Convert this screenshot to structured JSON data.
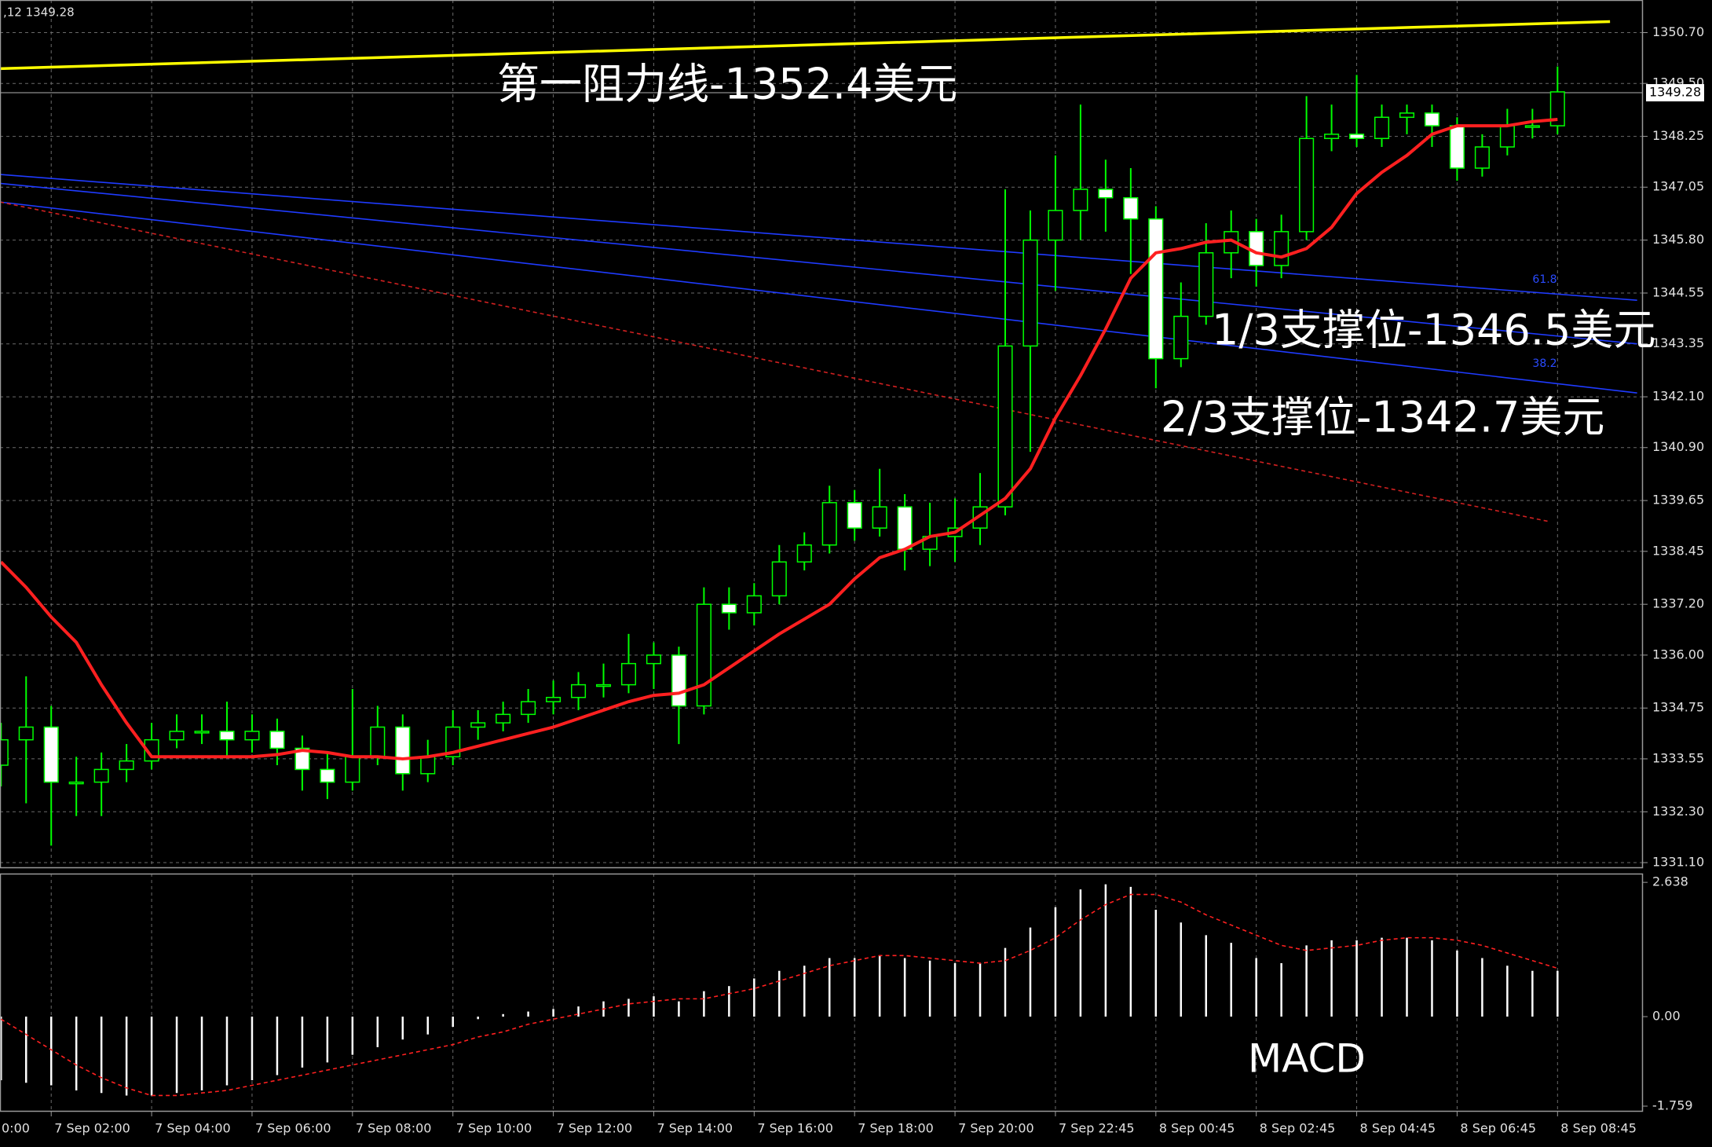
{
  "chart_data": [
    {
      "type": "candlestick",
      "info": ",12 1349.28",
      "x": [
        2,
        3,
        4,
        5,
        6,
        7,
        8,
        9,
        10,
        11,
        12,
        13,
        14,
        15,
        16,
        17,
        18,
        19,
        20,
        21,
        22,
        23,
        24,
        25,
        26,
        27,
        28,
        29,
        30,
        31,
        32,
        33,
        34,
        35,
        36,
        37,
        38,
        39,
        40,
        41,
        42,
        43,
        44,
        45,
        46,
        47,
        48,
        49,
        50,
        51,
        52,
        53,
        54,
        55,
        56,
        57,
        58,
        59,
        60,
        61,
        62,
        63,
        64
      ],
      "open": [
        1333.4,
        1334.0,
        1334.3,
        1333.0,
        1333.0,
        1333.3,
        1333.5,
        1334.0,
        1334.2,
        1334.2,
        1334.0,
        1334.2,
        1333.8,
        1333.3,
        1333.0,
        1333.6,
        1334.3,
        1333.2,
        1333.6,
        1334.3,
        1334.4,
        1334.6,
        1334.9,
        1335.0,
        1335.3,
        1335.3,
        1335.8,
        1336.0,
        1334.8,
        1337.2,
        1337.0,
        1337.4,
        1338.2,
        1338.6,
        1339.6,
        1339.0,
        1339.5,
        1338.5,
        1338.8,
        1339.0,
        1339.5,
        1343.3,
        1345.8,
        1346.5,
        1347.0,
        1346.8,
        1346.3,
        1343.0,
        1344.0,
        1345.5,
        1346.0,
        1345.2,
        1346.0,
        1348.2,
        1348.3,
        1348.2,
        1348.7,
        1348.8,
        1348.5,
        1347.5,
        1348.0,
        1348.5,
        1348.5
      ],
      "high": [
        1334.4,
        1335.5,
        1334.8,
        1333.6,
        1333.7,
        1333.9,
        1334.4,
        1334.6,
        1334.6,
        1334.9,
        1334.6,
        1334.5,
        1334.1,
        1333.7,
        1335.2,
        1334.8,
        1334.6,
        1334.0,
        1334.7,
        1334.7,
        1334.9,
        1335.2,
        1335.4,
        1335.6,
        1335.8,
        1336.5,
        1336.3,
        1336.2,
        1337.6,
        1337.6,
        1337.7,
        1338.6,
        1338.9,
        1340.0,
        1339.9,
        1340.4,
        1339.8,
        1339.6,
        1339.7,
        1340.3,
        1347.0,
        1346.5,
        1347.8,
        1349.0,
        1347.7,
        1347.5,
        1346.6,
        1344.8,
        1346.2,
        1346.5,
        1346.3,
        1346.4,
        1349.2,
        1349.0,
        1349.7,
        1349.0,
        1349.0,
        1349.0,
        1348.7,
        1348.3,
        1348.9,
        1348.9,
        1349.9
      ],
      "low": [
        1332.9,
        1332.5,
        1331.5,
        1332.2,
        1332.2,
        1333.0,
        1333.3,
        1333.8,
        1333.9,
        1333.6,
        1333.7,
        1333.4,
        1332.8,
        1332.6,
        1332.8,
        1333.4,
        1332.8,
        1333.0,
        1333.4,
        1334.0,
        1334.2,
        1334.4,
        1334.6,
        1334.7,
        1335.0,
        1335.1,
        1335.2,
        1333.9,
        1334.6,
        1336.6,
        1336.7,
        1337.2,
        1338.0,
        1338.4,
        1338.7,
        1338.8,
        1338.0,
        1338.1,
        1338.2,
        1338.6,
        1339.3,
        1340.8,
        1344.6,
        1345.8,
        1346.0,
        1345.0,
        1342.3,
        1342.8,
        1343.8,
        1344.9,
        1344.7,
        1344.9,
        1345.8,
        1347.9,
        1348.0,
        1348.0,
        1348.3,
        1348.0,
        1347.2,
        1347.3,
        1347.8,
        1348.2,
        1348.3
      ],
      "close": [
        1334.0,
        1334.3,
        1333.0,
        1333.0,
        1333.3,
        1333.5,
        1334.0,
        1334.2,
        1334.2,
        1334.0,
        1334.2,
        1333.8,
        1333.3,
        1333.0,
        1333.6,
        1334.3,
        1333.2,
        1333.6,
        1334.3,
        1334.4,
        1334.6,
        1334.9,
        1335.0,
        1335.3,
        1335.3,
        1335.8,
        1336.0,
        1334.8,
        1337.2,
        1337.0,
        1337.4,
        1338.2,
        1338.6,
        1339.6,
        1339.0,
        1339.5,
        1338.5,
        1338.8,
        1339.0,
        1339.5,
        1343.3,
        1345.8,
        1346.5,
        1347.0,
        1346.8,
        1346.3,
        1343.0,
        1344.0,
        1345.5,
        1346.0,
        1345.2,
        1346.0,
        1348.2,
        1348.3,
        1348.2,
        1348.7,
        1348.8,
        1348.5,
        1347.5,
        1348.0,
        1348.5,
        1348.5,
        1349.3
      ],
      "candle_color": "#00ff00",
      "ma": {
        "color": "#ff2020",
        "values": [
          1338.2,
          1337.6,
          1336.9,
          1336.3,
          1335.3,
          1334.4,
          1333.6,
          1333.6,
          1333.6,
          1333.6,
          1333.6,
          1333.65,
          1333.75,
          1333.7,
          1333.6,
          1333.6,
          1333.55,
          1333.6,
          1333.7,
          1333.85,
          1334.0,
          1334.15,
          1334.3,
          1334.5,
          1334.7,
          1334.9,
          1335.05,
          1335.1,
          1335.3,
          1335.7,
          1336.1,
          1336.5,
          1336.85,
          1337.2,
          1337.8,
          1338.3,
          1338.5,
          1338.8,
          1338.9,
          1339.3,
          1339.7,
          1340.4,
          1341.6,
          1342.6,
          1343.7,
          1344.9,
          1345.5,
          1345.6,
          1345.75,
          1345.8,
          1345.5,
          1345.4,
          1345.6,
          1346.1,
          1346.9,
          1347.4,
          1347.8,
          1348.3,
          1348.5,
          1348.5,
          1348.5,
          1348.6,
          1348.65
        ]
      },
      "lines": [
        {
          "color": "#ffff00",
          "style": "solid",
          "x": [
            1.96,
            66.09
          ],
          "values": [
            1349.85,
            1350.96
          ]
        },
        {
          "color": "#1f3bff",
          "style": "solid",
          "x": [
            1.96,
            67.17
          ],
          "values": [
            1347.35,
            1344.38
          ]
        },
        {
          "color": "#1f3bff",
          "style": "solid",
          "x": [
            1.96,
            67.17
          ],
          "values": [
            1347.14,
            1343.35
          ]
        },
        {
          "color": "#1f3bff",
          "style": "solid",
          "x": [
            1.96,
            67.17
          ],
          "values": [
            1346.7,
            1342.19
          ]
        },
        {
          "color": "#d02020",
          "style": "dashed",
          "x": [
            1.96,
            63.7
          ],
          "values": [
            1346.7,
            1339.15
          ]
        }
      ],
      "current_price": {
        "value": 1349.28,
        "label": "1349.28"
      },
      "fib_levels": [
        61.8,
        38.2
      ],
      "annotations": [
        "第一阻力线-1352.4美元",
        "1/3支撑位-1346.5美元",
        "2/3支撑位-1342.7美元"
      ],
      "xlim": [
        1.96,
        67.4
      ],
      "ylim": [
        1330.97,
        1351.47
      ],
      "yticks": [
        {
          "value": 1350.7,
          "label": "1350.70"
        },
        {
          "value": 1349.5,
          "label": "1349.50"
        },
        1348.25,
        1347.05,
        {
          "value": 1345.8,
          "label": "1345.80"
        },
        1344.55,
        1343.35,
        {
          "value": 1342.1,
          "label": "1342.10"
        },
        {
          "value": 1340.9,
          "label": "1340.90"
        },
        1339.65,
        1338.45,
        {
          "value": 1337.2,
          "label": "1337.20"
        },
        {
          "value": 1336,
          "label": "1336.00"
        },
        1334.75,
        1333.55,
        {
          "value": 1332.3,
          "label": "1332.30"
        },
        {
          "value": 1331.1,
          "label": "1331.10"
        }
      ],
      "grid": true
    },
    {
      "type": "macd",
      "label": "MACD",
      "x": [
        2,
        3,
        4,
        5,
        6,
        7,
        8,
        9,
        10,
        11,
        12,
        13,
        14,
        15,
        16,
        17,
        18,
        19,
        20,
        21,
        22,
        23,
        24,
        25,
        26,
        27,
        28,
        29,
        30,
        31,
        32,
        33,
        34,
        35,
        36,
        37,
        38,
        39,
        40,
        41,
        42,
        43,
        44,
        45,
        46,
        47,
        48,
        49,
        50,
        51,
        52,
        53,
        54,
        55,
        56,
        57,
        58,
        59,
        60,
        61,
        62,
        63,
        64
      ],
      "histogram": {
        "color": "#ffffff",
        "values": [
          -1.25,
          -1.3,
          -1.35,
          -1.45,
          -1.5,
          -1.55,
          -1.55,
          -1.5,
          -1.45,
          -1.35,
          -1.25,
          -1.15,
          -1.0,
          -0.9,
          -0.75,
          -0.6,
          -0.45,
          -0.35,
          -0.2,
          -0.05,
          0.05,
          0.1,
          0.15,
          0.2,
          0.3,
          0.35,
          0.4,
          0.3,
          0.5,
          0.6,
          0.75,
          0.9,
          1.0,
          1.15,
          1.15,
          1.2,
          1.15,
          1.1,
          1.05,
          1.05,
          1.35,
          1.75,
          2.15,
          2.5,
          2.6,
          2.55,
          2.1,
          1.85,
          1.6,
          1.45,
          1.15,
          1.05,
          1.4,
          1.5,
          1.5,
          1.55,
          1.55,
          1.5,
          1.3,
          1.15,
          1.0,
          0.9,
          0.9
        ]
      },
      "signal": {
        "color": "#ff2020",
        "values": [
          -0.05,
          -0.35,
          -0.65,
          -0.95,
          -1.2,
          -1.4,
          -1.55,
          -1.55,
          -1.5,
          -1.45,
          -1.35,
          -1.25,
          -1.15,
          -1.05,
          -0.95,
          -0.85,
          -0.75,
          -0.65,
          -0.55,
          -0.4,
          -0.3,
          -0.15,
          -0.05,
          0.05,
          0.15,
          0.25,
          0.3,
          0.35,
          0.35,
          0.45,
          0.55,
          0.7,
          0.85,
          1.0,
          1.1,
          1.2,
          1.2,
          1.15,
          1.1,
          1.05,
          1.1,
          1.3,
          1.55,
          1.9,
          2.2,
          2.4,
          2.4,
          2.25,
          2.0,
          1.8,
          1.6,
          1.4,
          1.3,
          1.35,
          1.4,
          1.5,
          1.55,
          1.55,
          1.5,
          1.4,
          1.25,
          1.1,
          0.95
        ]
      },
      "xlim": [
        1.96,
        67.4
      ],
      "ylim": [
        -1.867,
        2.81
      ],
      "yticks": [
        2.638,
        {
          "value": 0,
          "label": "0.00"
        },
        -1.759
      ],
      "xticks": [
        {
          "value": 0,
          "label": "0:00"
        },
        {
          "value": 4,
          "label": "7 Sep 02:00"
        },
        {
          "value": 8,
          "label": "7 Sep 04:00"
        },
        {
          "value": 12,
          "label": "7 Sep 06:00"
        },
        {
          "value": 16,
          "label": "7 Sep 08:00"
        },
        {
          "value": 20,
          "label": "7 Sep 10:00"
        },
        {
          "value": 24,
          "label": "7 Sep 12:00"
        },
        {
          "value": 28,
          "label": "7 Sep 14:00"
        },
        {
          "value": 32,
          "label": "7 Sep 16:00"
        },
        {
          "value": 36,
          "label": "7 Sep 18:00"
        },
        {
          "value": 40,
          "label": "7 Sep 20:00"
        },
        {
          "value": 44,
          "label": "7 Sep 22:45"
        },
        {
          "value": 48,
          "label": "8 Sep 00:45"
        },
        {
          "value": 52,
          "label": "8 Sep 02:45"
        },
        {
          "value": 56,
          "label": "8 Sep 04:45"
        },
        {
          "value": 60,
          "label": "8 Sep 06:45"
        },
        {
          "value": 64,
          "label": "8 Sep 08:45"
        }
      ],
      "grid": true
    }
  ]
}
